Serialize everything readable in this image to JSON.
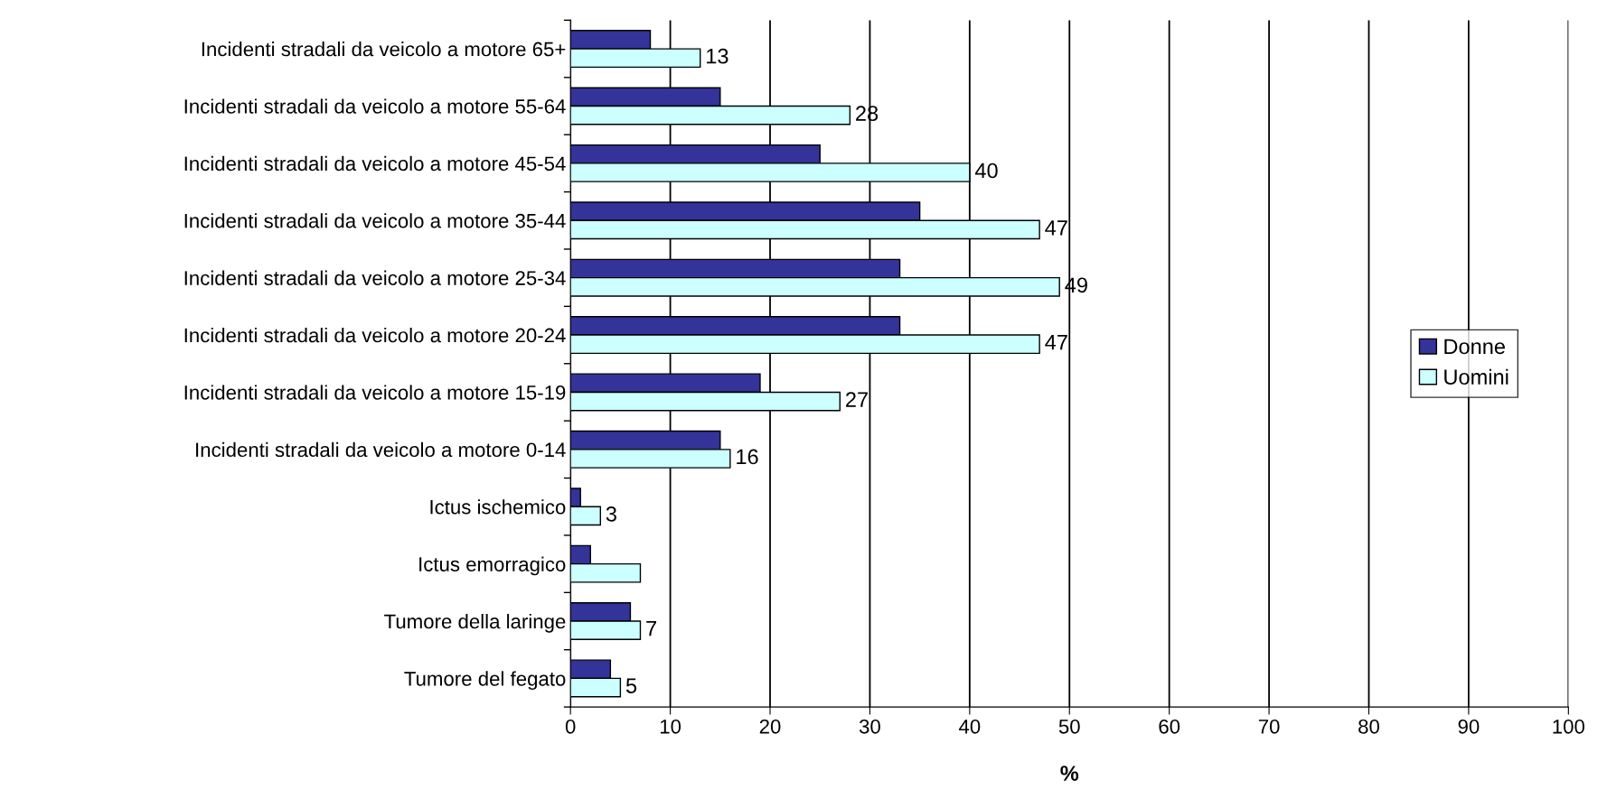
{
  "chart_data": {
    "type": "bar",
    "orientation": "horizontal",
    "xlabel": "%",
    "categories": [
      "Incidenti stradali da veicolo a motore 65+",
      "Incidenti stradali da veicolo a motore 55-64",
      "Incidenti stradali da veicolo a motore 45-54",
      "Incidenti stradali da veicolo a motore 35-44",
      "Incidenti stradali da veicolo a motore 25-34",
      "Incidenti stradali da veicolo a motore 20-24",
      "Incidenti stradali da veicolo a motore 15-19",
      "Incidenti stradali da veicolo a motore 0-14",
      "Ictus ischemico",
      "Ictus emorragico",
      "Tumore della laringe",
      "Tumore del fegato"
    ],
    "series": [
      {
        "name": "Donne",
        "color": "#333399",
        "values": [
          8,
          15,
          25,
          35,
          33,
          33,
          19,
          15,
          1,
          2,
          6,
          4
        ]
      },
      {
        "name": "Uomini",
        "color": "#ccffff",
        "values": [
          13,
          28,
          40,
          47,
          49,
          47,
          27,
          16,
          3,
          7,
          7,
          5
        ],
        "value_labels": [
          "13",
          "28",
          "40",
          "47",
          "49",
          "47",
          "27",
          "16",
          "3",
          null,
          "7",
          "5"
        ]
      }
    ],
    "xlim": [
      0,
      100
    ],
    "xticks": [
      0,
      10,
      20,
      30,
      40,
      50,
      60,
      70,
      80,
      90,
      100
    ],
    "grid": "x",
    "legend": "right"
  }
}
